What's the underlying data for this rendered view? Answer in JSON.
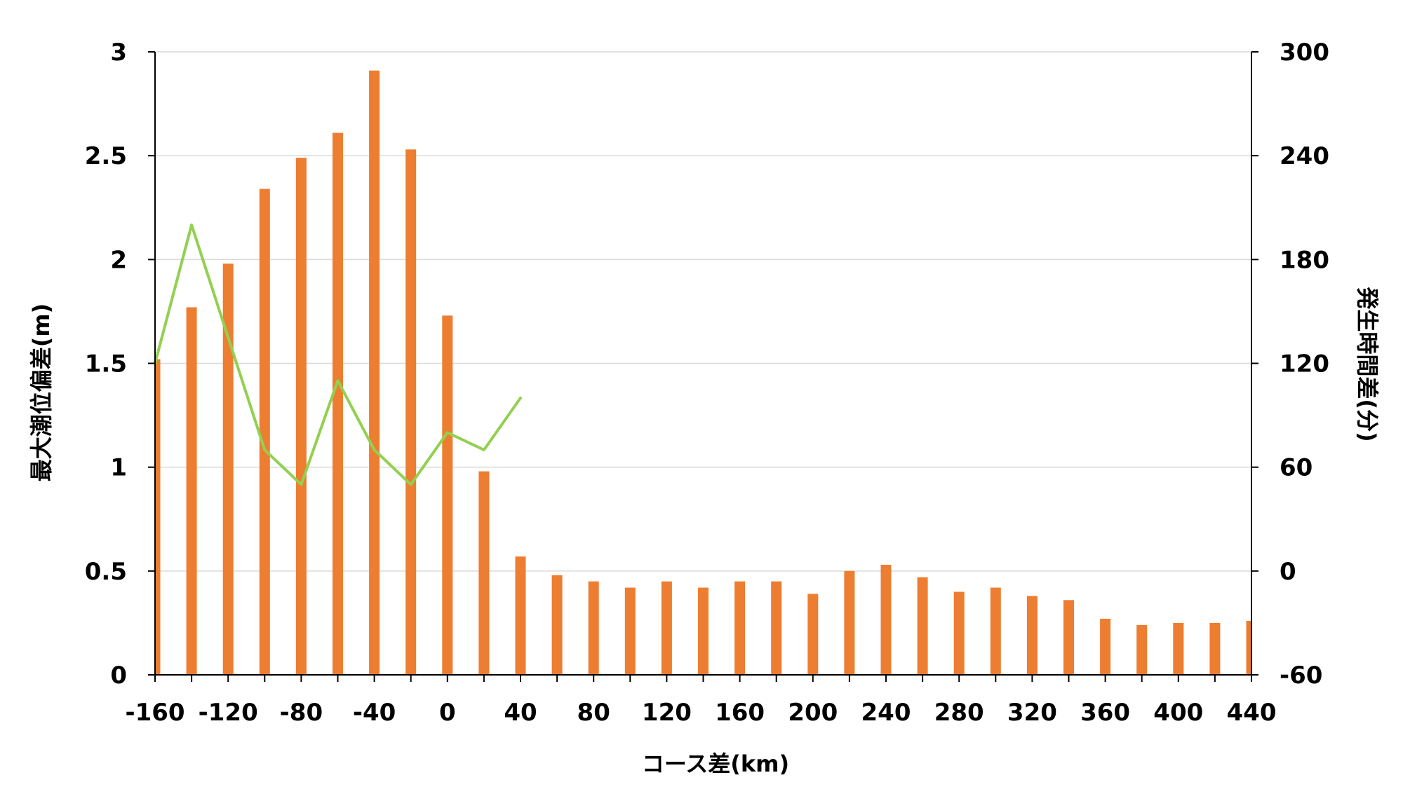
{
  "chart_data": {
    "type": "bar",
    "title": "",
    "xlabel": "コース差(km)",
    "ylabel_left": "最大潮位偏差(m)",
    "ylabel_right": "発生時間差(分)",
    "x_ticks": [
      -160,
      -120,
      -80,
      -40,
      0,
      40,
      80,
      120,
      160,
      200,
      240,
      280,
      320,
      360,
      400,
      440
    ],
    "xlim": [
      -160,
      440
    ],
    "y_left_ticks": [
      "0",
      "0.5",
      "1",
      "1.5",
      "2",
      "2.5",
      "3"
    ],
    "ylim_left": [
      0,
      3
    ],
    "y_right_ticks": [
      "-60",
      "0",
      "60",
      "120",
      "180",
      "240",
      "300"
    ],
    "ylim_right": [
      -60,
      300
    ],
    "grid": true,
    "series": [
      {
        "kind": "bar",
        "axis": "left",
        "color": "#ED7D31",
        "x": [
          -160,
          -140,
          -120,
          -100,
          -80,
          -60,
          -40,
          -20,
          0,
          20,
          40,
          60,
          80,
          100,
          120,
          140,
          160,
          180,
          200,
          220,
          240,
          260,
          280,
          300,
          320,
          340,
          360,
          380,
          400,
          420,
          440
        ],
        "values": [
          1.52,
          1.77,
          1.98,
          2.34,
          2.49,
          2.61,
          2.91,
          2.53,
          1.73,
          0.98,
          0.57,
          0.48,
          0.45,
          0.42,
          0.45,
          0.42,
          0.45,
          0.45,
          0.39,
          0.5,
          0.53,
          0.47,
          0.4,
          0.42,
          0.38,
          0.36,
          0.27,
          0.24,
          0.25,
          0.25,
          0.26
        ]
      },
      {
        "kind": "line",
        "axis": "right",
        "color": "#92D050",
        "x": [
          -160,
          -140,
          -120,
          -100,
          -80,
          -60,
          -40,
          -20,
          0,
          20,
          40
        ],
        "values": [
          120,
          200,
          135,
          70,
          50,
          110,
          70,
          50,
          80,
          70,
          100
        ]
      }
    ]
  }
}
